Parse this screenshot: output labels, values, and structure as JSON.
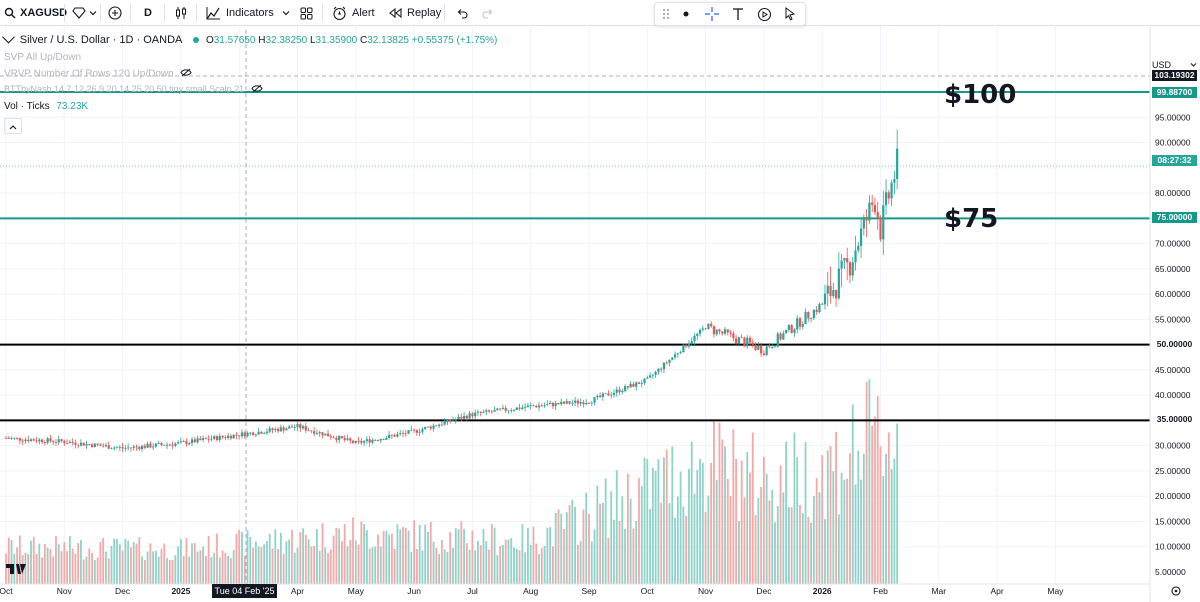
{
  "toolbar": {
    "symbol": "XAGUSD",
    "interval": "D",
    "indicators_label": "Indicators",
    "alert_label": "Alert",
    "replay_label": "Replay"
  },
  "legend": {
    "title": "Silver / U.S. Dollar · 1D · OANDA",
    "open_label": "O",
    "open": "31.57650",
    "high_label": "H",
    "high": "32.38250",
    "low_label": "L",
    "low": "31.35900",
    "close_label": "C",
    "close": "32.13825",
    "change": "+0.55375 (+1.75%)",
    "indicators": [
      "SVP All Up/Down",
      "VRVP Number Of Rows 120 Up/Down",
      "BTTbyNash 14 7 12 26 9 20 14 25 20 50 tiny small Scalp 21"
    ],
    "vol_label": "Vol · Ticks",
    "vol_value": "73.23K"
  },
  "currency": "USD",
  "price_axis": {
    "ticks": [
      "95.00000",
      "90.00000",
      "80.00000",
      "70.00000",
      "65.00000",
      "60.00000",
      "55.00000",
      "45.00000",
      "40.00000",
      "30.00000",
      "25.00000",
      "20.00000",
      "15.00000",
      "10.00000",
      "5.00000"
    ],
    "badges": [
      {
        "text": "103.19302",
        "style": "dark"
      },
      {
        "text": "99.88700",
        "style": "teal"
      },
      {
        "text": "08:27:32",
        "style": "green"
      },
      {
        "text": "75.00000",
        "style": "teal"
      },
      {
        "text": "50.00000",
        "style": "plain"
      },
      {
        "text": "35.00000",
        "style": "plain"
      }
    ]
  },
  "time_axis": [
    "Oct",
    "Nov",
    "Dec",
    "2025",
    "Mar",
    "Apr",
    "May",
    "Jun",
    "Jul",
    "Aug",
    "Sep",
    "Oct",
    "Nov",
    "Dec",
    "2026",
    "Feb",
    "Mar",
    "Apr",
    "May"
  ],
  "crosshair_date": "Tue 04 Feb '25",
  "annotations": {
    "level_100": "$100",
    "level_75": "$75"
  },
  "colors": {
    "teal": "#16998a",
    "up": "#26a69a",
    "down": "#ef5350",
    "vol_up": "#8fd2c9",
    "vol_down": "#f5a8a6"
  },
  "chart_data": {
    "type": "candlestick",
    "symbol": "XAGUSD",
    "x_range": [
      "2024-10",
      "2026-01"
    ],
    "ylim": [
      5,
      103
    ],
    "horizontal_levels": [
      100,
      75,
      50,
      35
    ],
    "series": [
      {
        "name": "Price",
        "values": [
          {
            "x": "2024-10",
            "y": 31.5
          },
          {
            "x": "2024-11",
            "y": 30.8
          },
          {
            "x": "2024-12",
            "y": 29.5
          },
          {
            "x": "2025-01",
            "y": 30.5
          },
          {
            "x": "2025-02",
            "y": 32.2
          },
          {
            "x": "2025-03",
            "y": 33.8
          },
          {
            "x": "2025-04",
            "y": 30.5
          },
          {
            "x": "2025-05",
            "y": 32.8
          },
          {
            "x": "2025-06",
            "y": 36.2
          },
          {
            "x": "2025-07",
            "y": 37.8
          },
          {
            "x": "2025-08",
            "y": 38.8
          },
          {
            "x": "2025-09",
            "y": 43.0
          },
          {
            "x": "2025-10",
            "y": 53.5
          },
          {
            "x": "2025-11",
            "y": 49.0
          },
          {
            "x": "2025-12",
            "y": 58.0
          },
          {
            "x": "2025-12-15",
            "y": 66.0
          },
          {
            "x": "2025-12-28",
            "y": 79.0
          },
          {
            "x": "2026-01",
            "y": 73.0
          },
          {
            "x": "2026-01-10",
            "y": 86.5
          }
        ]
      },
      {
        "name": "Vol · Ticks",
        "values": [
          {
            "x": "2024-10",
            "y": 5.5
          },
          {
            "x": "2025-01",
            "y": 5.0
          },
          {
            "x": "2025-04",
            "y": 8.5
          },
          {
            "x": "2025-07",
            "y": 7.0
          },
          {
            "x": "2025-10",
            "y": 24.0
          },
          {
            "x": "2025-11",
            "y": 20.0
          },
          {
            "x": "2025-12",
            "y": 22.0
          },
          {
            "x": "2026-01",
            "y": 30.0
          }
        ]
      }
    ]
  }
}
